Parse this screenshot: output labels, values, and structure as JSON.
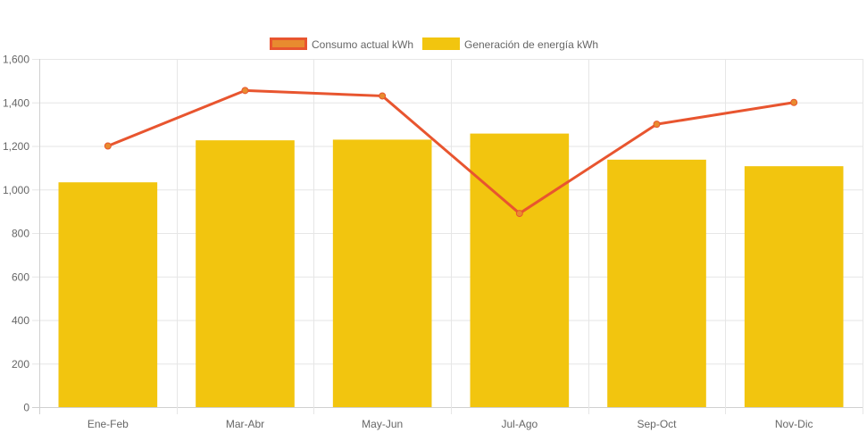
{
  "chart_data": {
    "type": "bar",
    "categories": [
      "Ene-Feb",
      "Mar-Abr",
      "May-Jun",
      "Jul-Ago",
      "Sep-Oct",
      "Nov-Dic"
    ],
    "series": [
      {
        "name": "Consumo actual kWh",
        "type": "line",
        "values": [
          1200,
          1455,
          1430,
          890,
          1300,
          1400
        ],
        "color": "#e8552f",
        "fill_color": "#e88b2f"
      },
      {
        "name": "Generación de energía kWh",
        "type": "bar",
        "values": [
          1033,
          1226,
          1229,
          1257,
          1137,
          1107
        ],
        "color": "#f2c50f"
      }
    ],
    "y_ticks": [
      "0",
      "200",
      "400",
      "600",
      "800",
      "1,000",
      "1,200",
      "1,400",
      "1,600"
    ],
    "ylim": [
      0,
      1600
    ],
    "grid": true,
    "legend_position": "top-center"
  }
}
